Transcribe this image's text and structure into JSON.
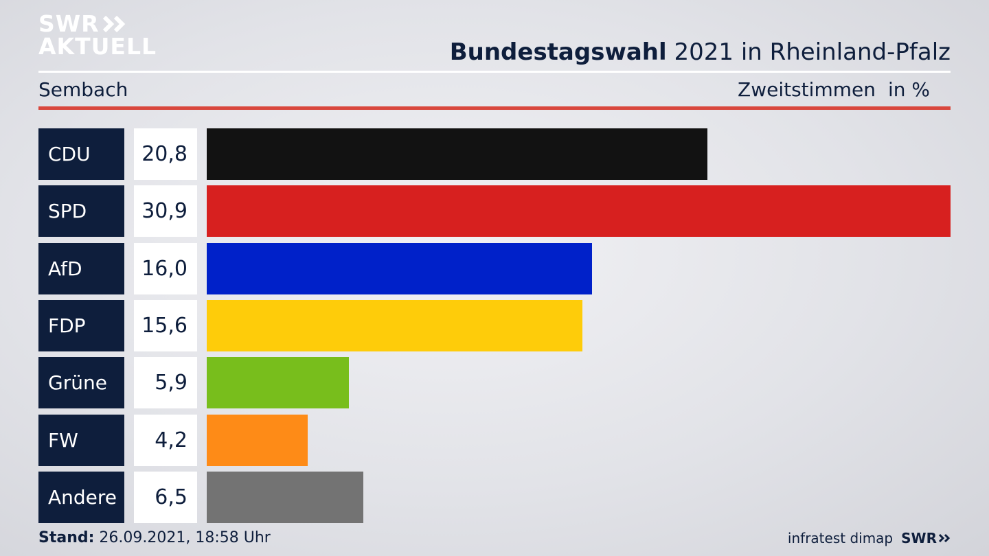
{
  "logo": {
    "line1": "SWR",
    "line2": "AKTUELL"
  },
  "header": {
    "title_bold": "Bundestagswahl",
    "title_rest": "2021 in Rheinland-Pfalz",
    "region": "Sembach",
    "metric": "Zweitstimmen",
    "unit": "in %"
  },
  "footer": {
    "stand_label": "Stand:",
    "stand_value": "26.09.2021, 18:58 Uhr",
    "source": "infratest dimap",
    "brand": "SWR"
  },
  "chart_data": {
    "type": "bar",
    "orientation": "horizontal",
    "categories": [
      "CDU",
      "SPD",
      "AfD",
      "FDP",
      "Grüne",
      "FW",
      "Andere"
    ],
    "values": [
      20.8,
      30.9,
      16.0,
      15.6,
      5.9,
      4.2,
      6.5
    ],
    "value_labels": [
      "20,8",
      "30,9",
      "16,0",
      "15,6",
      "5,9",
      "4,2",
      "6,5"
    ],
    "colors": [
      "#121212",
      "#d7201f",
      "#0021c9",
      "#fecc0a",
      "#78be1c",
      "#fe8b17",
      "#737373"
    ],
    "xlim": [
      0,
      30.9
    ],
    "grid": false,
    "legend": "none"
  },
  "colors": {
    "navy": "#0e1e3c",
    "accent_red": "#d9473d"
  }
}
